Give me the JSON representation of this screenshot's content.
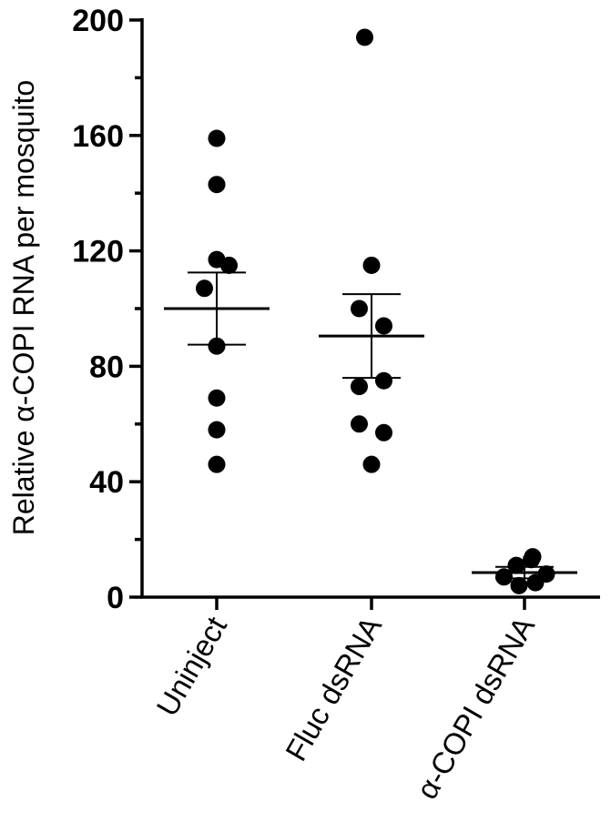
{
  "chart_data": {
    "type": "scatter",
    "title": "",
    "xlabel": "",
    "ylabel": "Relative α-COPI RNA per mosquito",
    "ylim": [
      0,
      200
    ],
    "yticks": [
      0,
      40,
      80,
      120,
      160,
      200
    ],
    "ytick_labels": [
      "0",
      "40",
      "80",
      "120",
      "160",
      "200"
    ],
    "grid": false,
    "categories": [
      "Uninject",
      "Fluc dsRNA",
      "α-COPI dsRNA"
    ],
    "series": [
      {
        "category": "Uninject",
        "points": [
          {
            "offset": 0,
            "y": 159
          },
          {
            "offset": 0,
            "y": 143
          },
          {
            "offset": 0,
            "y": 117
          },
          {
            "offset": 0.45,
            "y": 115
          },
          {
            "offset": -0.45,
            "y": 107
          },
          {
            "offset": 0,
            "y": 87
          },
          {
            "offset": 0,
            "y": 69
          },
          {
            "offset": 0,
            "y": 58
          },
          {
            "offset": 0,
            "y": 46
          }
        ],
        "mean": 100,
        "sem_upper": 112.5,
        "sem_lower": 87.5
      },
      {
        "category": "Fluc dsRNA",
        "points": [
          {
            "offset": -0.25,
            "y": 194
          },
          {
            "offset": 0,
            "y": 115
          },
          {
            "offset": -0.45,
            "y": 100
          },
          {
            "offset": 0.45,
            "y": 94
          },
          {
            "offset": -0.45,
            "y": 73
          },
          {
            "offset": 0.45,
            "y": 75
          },
          {
            "offset": -0.45,
            "y": 60
          },
          {
            "offset": 0.45,
            "y": 57
          },
          {
            "offset": 0,
            "y": 46
          }
        ],
        "mean": 90.5,
        "sem_upper": 105,
        "sem_lower": 76
      },
      {
        "category": "α-COPI dsRNA",
        "points": [
          {
            "offset": -0.75,
            "y": 7
          },
          {
            "offset": -0.3,
            "y": 11
          },
          {
            "offset": 0.25,
            "y": 13
          },
          {
            "offset": 0.3,
            "y": 14
          },
          {
            "offset": -0.2,
            "y": 4
          },
          {
            "offset": 0.4,
            "y": 5
          },
          {
            "offset": 0.8,
            "y": 8
          }
        ],
        "mean": 8.5,
        "sem_upper": 10.5,
        "sem_lower": 6.5
      }
    ]
  }
}
